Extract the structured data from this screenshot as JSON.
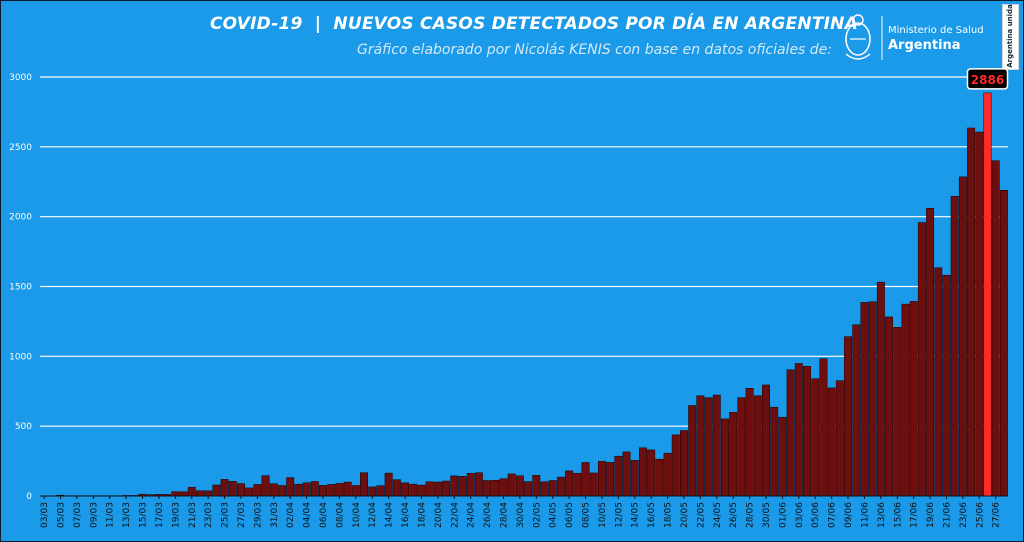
{
  "header": {
    "title": "COVID-19  |  NUEVOS CASOS DETECTADOS POR DÍA EN ARGENTINA",
    "subtitle": "Gráfico elaborado por Nicolás KENIS con base en datos oficiales de:"
  },
  "logo": {
    "line1": "Ministerio de Salud",
    "line2": "Argentina",
    "side_tag": "Argentina unida",
    "icon": "coat-of-arms-icon"
  },
  "colors": {
    "background": "#1a9ae8",
    "bar": "#6e0f0f",
    "highlight_bar": "#ff2a2a",
    "grid": "#ffffff"
  },
  "chart_data": {
    "type": "bar",
    "ylim": [
      0,
      3000
    ],
    "yticks": [
      0,
      500,
      1000,
      1500,
      2000,
      2500,
      3000
    ],
    "grid": true,
    "highlight": {
      "label": "2886",
      "index": 115
    },
    "series": [
      {
        "x": [
          "03/03",
          "04/03",
          "05/03",
          "06/03",
          "07/03",
          "08/03",
          "09/03",
          "10/03",
          "11/03",
          "12/03",
          "13/03",
          "14/03",
          "15/03",
          "16/03",
          "17/03",
          "18/03",
          "19/03",
          "20/03",
          "21/03",
          "22/03",
          "23/03",
          "24/03",
          "25/03",
          "26/03",
          "27/03",
          "28/03",
          "29/03",
          "30/03",
          "31/03",
          "01/04",
          "02/04",
          "03/04",
          "04/04",
          "05/04",
          "06/04",
          "07/04",
          "08/04",
          "09/04",
          "10/04",
          "11/04",
          "12/04",
          "13/04",
          "14/04",
          "15/04",
          "16/04",
          "17/04",
          "18/04",
          "19/04",
          "20/04",
          "21/04",
          "22/04",
          "23/04",
          "24/04",
          "25/04",
          "26/04",
          "27/04",
          "28/04",
          "29/04",
          "30/04",
          "01/05",
          "02/05",
          "03/05",
          "04/05",
          "05/05",
          "06/05",
          "07/05",
          "08/05",
          "09/05",
          "10/05",
          "11/05",
          "12/05",
          "13/05",
          "14/05",
          "15/05",
          "16/05",
          "17/05",
          "18/05",
          "19/05",
          "20/05",
          "21/05",
          "22/05",
          "23/05",
          "24/05",
          "25/05",
          "26/05",
          "27/05",
          "28/05",
          "29/05",
          "30/05",
          "31/05",
          "01/06",
          "02/06",
          "03/06",
          "04/06",
          "05/06",
          "06/06",
          "07/06",
          "08/06",
          "09/06",
          "10/06",
          "11/06",
          "12/06",
          "13/06",
          "14/06",
          "15/06",
          "16/06",
          "17/06",
          "18/06",
          "19/06",
          "20/06",
          "21/06",
          "22/06",
          "23/06",
          "24/06",
          "25/06",
          "26/06",
          "27/06",
          "28/06"
        ],
        "values": [
          1,
          0,
          6,
          2,
          2,
          2,
          2,
          2,
          2,
          2,
          4,
          4,
          13,
          10,
          12,
          11,
          31,
          30,
          63,
          38,
          37,
          79,
          119,
          105,
          89,
          58,
          83,
          146,
          88,
          75,
          132,
          85,
          95,
          104,
          76,
          83,
          90,
          100,
          75,
          167,
          65,
          74,
          164,
          117,
          94,
          85,
          78,
          102,
          100,
          107,
          144,
          141,
          163,
          167,
          111,
          113,
          124,
          158,
          145,
          103,
          148,
          102,
          111,
          135,
          180,
          163,
          240,
          165,
          248,
          241,
          285,
          316,
          255,
          345,
          330,
          264,
          307,
          438,
          469,
          648,
          718,
          704,
          723,
          552,
          599,
          704,
          771,
          718,
          795,
          636,
          564,
          904,
          949,
          929,
          840,
          983,
          774,
          826,
          1141,
          1226,
          1386,
          1391,
          1531,
          1282,
          1208,
          1374,
          1393,
          1958,
          2060,
          1634,
          1581,
          2146,
          2285,
          2635,
          2606,
          2886,
          2401,
          2189
        ]
      }
    ],
    "xtick_labels": [
      "03/03",
      "05/03",
      "07/03",
      "09/03",
      "11/03",
      "13/03",
      "15/03",
      "17/03",
      "19/03",
      "21/03",
      "23/03",
      "25/03",
      "27/03",
      "29/03",
      "31/03",
      "02/04",
      "04/04",
      "06/04",
      "08/04",
      "10/04",
      "12/04",
      "14/04",
      "16/04",
      "18/04",
      "20/04",
      "22/04",
      "24/04",
      "26/04",
      "28/04",
      "30/04",
      "02/05",
      "04/05",
      "06/05",
      "08/05",
      "10/05",
      "12/05",
      "14/05",
      "16/05",
      "18/05",
      "20/05",
      "22/05",
      "24/05",
      "26/05",
      "28/05",
      "30/05",
      "01/06",
      "03/06",
      "05/06",
      "07/06",
      "09/06",
      "11/06",
      "13/06",
      "15/06",
      "17/06",
      "19/06",
      "21/06",
      "23/06",
      "25/06",
      "27/06"
    ]
  }
}
